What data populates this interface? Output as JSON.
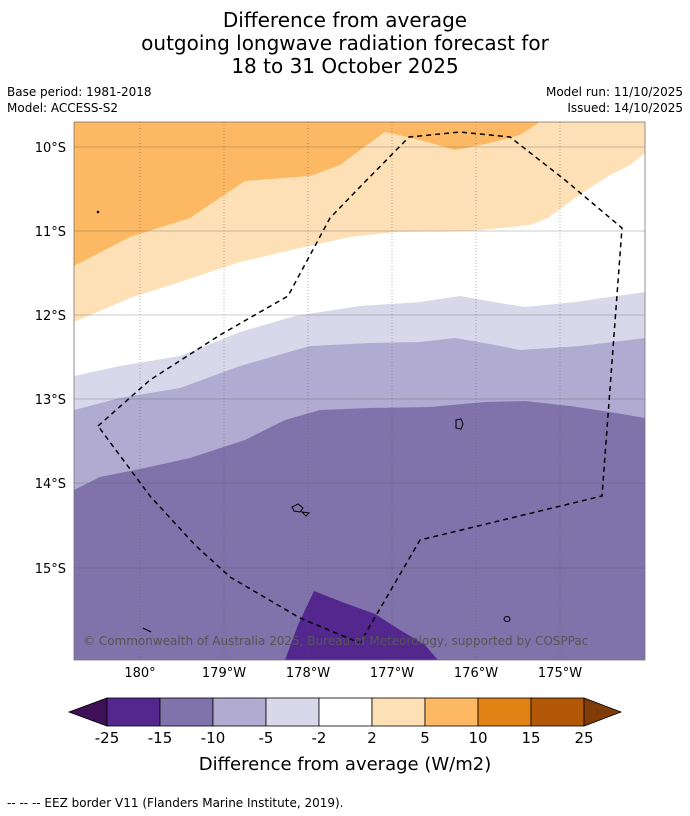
{
  "title": {
    "line1": "Difference from average",
    "line2": "outgoing longwave radiation forecast for",
    "line3": "18 to 31 October 2025"
  },
  "meta": {
    "base_period": "Base period: 1981-2018",
    "model": "Model: ACCESS-S2",
    "model_run": "Model run: 11/10/2025",
    "issued": "Issued: 14/10/2025"
  },
  "map": {
    "lat_labels": [
      "10°S",
      "11°S",
      "12°S",
      "13°S",
      "14°S",
      "15°S"
    ],
    "lon_labels": [
      "180°",
      "179°W",
      "178°W",
      "177°W",
      "176°W",
      "175°W"
    ],
    "copyright": "© Commonwealth of Australia 2025, Bureau of Meteorology, supported by COSPPac",
    "categories": [
      {
        "range": "below -25",
        "color": "#3f0f58"
      },
      {
        "range": "-25 to -15",
        "color": "#54278f"
      },
      {
        "range": "-15 to -10",
        "color": "#8072ab"
      },
      {
        "range": "-10 to -5",
        "color": "#b1abd1"
      },
      {
        "range": "-5 to -2",
        "color": "#d9d8ea"
      },
      {
        "range": "-2 to 2",
        "color": "#ffffff"
      },
      {
        "range": "2 to 5",
        "color": "#fee0b7"
      },
      {
        "range": "5 to 10",
        "color": "#fdb863"
      },
      {
        "range": "10 to 15",
        "color": "#e08214"
      },
      {
        "range": "15 to 25",
        "color": "#b35806"
      },
      {
        "range": "above 25",
        "color": "#7f3b08"
      }
    ]
  },
  "colorbar": {
    "tick_labels": [
      "-25",
      "-15",
      "-10",
      "-5",
      "-2",
      "2",
      "5",
      "10",
      "15",
      "25"
    ],
    "label": "Difference from average (W/m2)"
  },
  "footer": {
    "legend": "--  --  -- EEZ border V11 (Flanders Marine Institute, 2019)."
  }
}
